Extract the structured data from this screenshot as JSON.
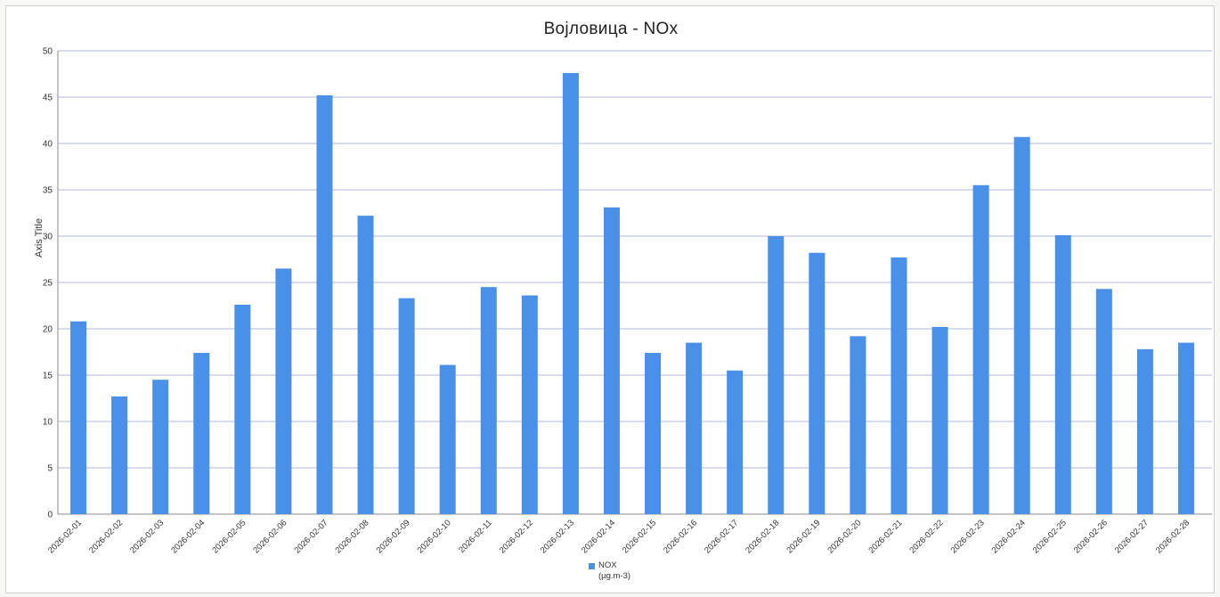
{
  "chart_data": {
    "type": "bar",
    "title": "Војловица - NOx",
    "xlabel": "",
    "ylabel": "Axis Title",
    "ylim": [
      0,
      50
    ],
    "yticks": [
      0,
      5,
      10,
      15,
      20,
      25,
      30,
      35,
      40,
      45,
      50
    ],
    "grid": true,
    "legend_position": "bottom",
    "bar_color": "#4a90e8",
    "categories": [
      "2026-02-01",
      "2026-02-02",
      "2026-02-03",
      "2026-02-04",
      "2026-02-05",
      "2026-02-06",
      "2026-02-07",
      "2026-02-08",
      "2026-02-09",
      "2026-02-10",
      "2026-02-11",
      "2026-02-12",
      "2026-02-13",
      "2026-02-14",
      "2026-02-15",
      "2026-02-16",
      "2026-02-17",
      "2026-02-18",
      "2026-02-19",
      "2026-02-20",
      "2026-02-21",
      "2026-02-22",
      "2026-02-23",
      "2026-02-24",
      "2026-02-25",
      "2026-02-26",
      "2026-02-27",
      "2026-02-28"
    ],
    "series": [
      {
        "name": "NOX (µg.m-3)",
        "legend_lines": [
          "NOX",
          "(µg.m-3)"
        ],
        "values": [
          20.8,
          12.7,
          14.5,
          17.4,
          22.6,
          26.5,
          45.2,
          32.2,
          23.3,
          16.1,
          24.5,
          23.6,
          47.6,
          33.1,
          17.4,
          18.5,
          15.5,
          30.0,
          28.2,
          19.2,
          27.7,
          20.2,
          35.5,
          40.7,
          30.1,
          24.3,
          17.8,
          18.5
        ]
      }
    ]
  }
}
